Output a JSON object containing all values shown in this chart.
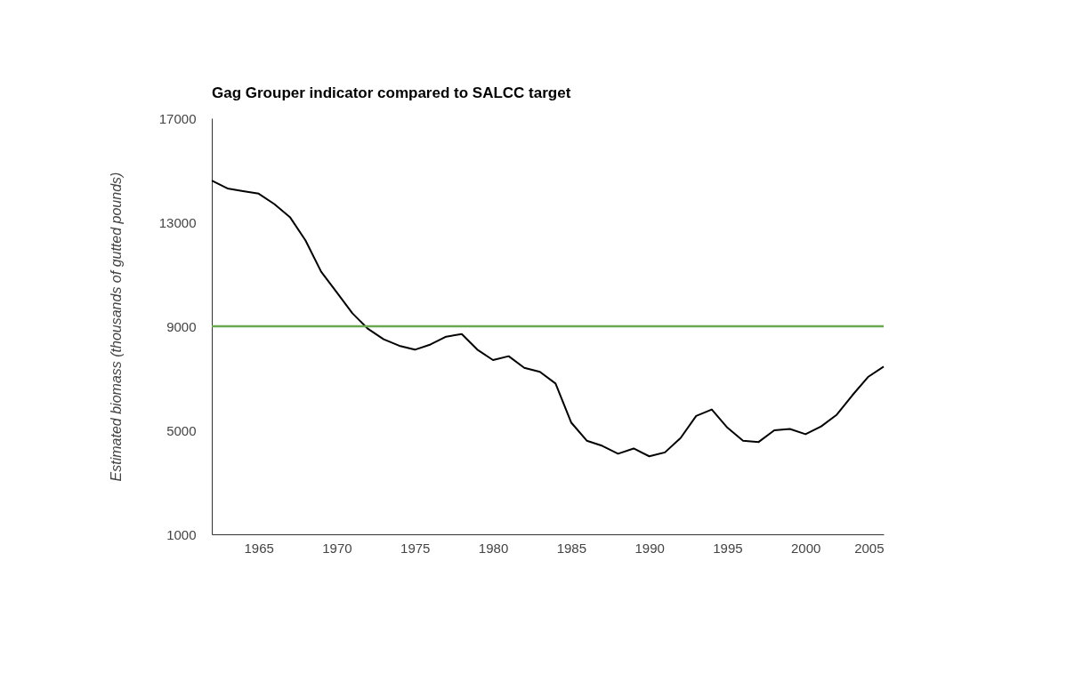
{
  "chart_data": {
    "type": "line",
    "title": "Gag Grouper indicator compared to SALCC target",
    "ylabel": "Estimated biomass (thousands of gutted pounds)",
    "x": [
      1962,
      1963,
      1964,
      1965,
      1966,
      1967,
      1968,
      1969,
      1970,
      1971,
      1972,
      1973,
      1974,
      1975,
      1976,
      1977,
      1978,
      1979,
      1980,
      1981,
      1982,
      1983,
      1984,
      1985,
      1986,
      1987,
      1988,
      1989,
      1990,
      1991,
      1992,
      1993,
      1994,
      1995,
      1996,
      1997,
      1998,
      1999,
      2000,
      2001,
      2002,
      2003,
      2004,
      2005
    ],
    "series": [
      {
        "color": "#000000",
        "values": [
          14600,
          14300,
          14200,
          14100,
          13700,
          13200,
          12300,
          11100,
          10300,
          9500,
          8900,
          8500,
          8250,
          8100,
          8300,
          8600,
          8700,
          8100,
          7700,
          7850,
          7400,
          7250,
          6800,
          5300,
          4600,
          4400,
          4100,
          4300,
          4000,
          4150,
          4700,
          5550,
          5800,
          5100,
          4600,
          4550,
          5000,
          5050,
          4850,
          5150,
          5600,
          6350,
          7050,
          7450
        ]
      }
    ],
    "ref_lines": [
      {
        "axis": "y",
        "value": 9000,
        "color": "#6aa84f"
      }
    ],
    "xlim": [
      1962,
      2005
    ],
    "xticks": [
      1965,
      1970,
      1975,
      1980,
      1985,
      1990,
      1995,
      2000,
      2005
    ],
    "ylim": [
      1000,
      17000
    ],
    "yticks": [
      1000,
      5000,
      9000,
      13000,
      17000
    ],
    "grid": false,
    "marker": "none",
    "line_style": "solid"
  }
}
